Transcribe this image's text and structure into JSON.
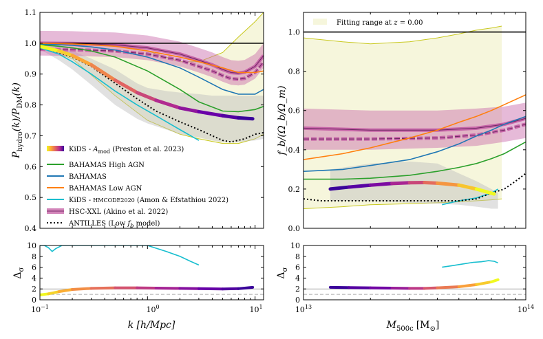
{
  "chart_data": [
    {
      "id": "left_top",
      "type": "line",
      "xscale": "log",
      "xlim": [
        0.1,
        12
      ],
      "ylim": [
        0.4,
        1.1
      ],
      "xlabel": "k [h/Mpc]",
      "ylabel": "P_hydro(k)/P_DM(k)",
      "yticks": [
        "0.4",
        "0.5",
        "0.6",
        "0.7",
        "0.8",
        "0.9",
        "1.0",
        "1.1"
      ],
      "legend": {
        "placement": "lower-left",
        "items": [
          {
            "label": "KiDS - A_mod (Preston et al. 2023)",
            "style": "gradient"
          },
          {
            "label": "BAHAMAS High AGN",
            "color": "#2ca02c"
          },
          {
            "label": "BAHAMAS",
            "color": "#1f77b4"
          },
          {
            "label": "BAHAMAS Low AGN",
            "color": "#ff7f0e"
          },
          {
            "label": "KiDS - HMCODE2020 (Amon & Efstathiou 2022)",
            "color": "#17becf"
          },
          {
            "label": "HSC-XXL (Akino et al. 2022)",
            "color": "#c765a8"
          },
          {
            "label": "ANTILLES (Low f_b model)",
            "color": "#000000",
            "dash": "dotted"
          }
        ]
      },
      "series": [
        {
          "name": "BAHAMAS High AGN",
          "color": "#2ca02c",
          "x": [
            0.1,
            0.15,
            0.2,
            0.3,
            0.5,
            1,
            2,
            3,
            5,
            7,
            10,
            12
          ],
          "y": [
            0.995,
            0.99,
            0.985,
            0.975,
            0.955,
            0.91,
            0.85,
            0.81,
            0.78,
            0.778,
            0.785,
            0.795
          ]
        },
        {
          "name": "BAHAMAS",
          "color": "#1f77b4",
          "x": [
            0.1,
            0.15,
            0.2,
            0.3,
            0.5,
            1,
            2,
            3,
            5,
            7,
            10,
            12
          ],
          "y": [
            0.998,
            0.995,
            0.993,
            0.988,
            0.978,
            0.955,
            0.92,
            0.89,
            0.85,
            0.835,
            0.835,
            0.85
          ]
        },
        {
          "name": "BAHAMAS Low AGN",
          "color": "#ff7f0e",
          "x": [
            0.1,
            0.15,
            0.2,
            0.3,
            0.5,
            1,
            2,
            3,
            5,
            7,
            10,
            12
          ],
          "y": [
            1.0,
            0.999,
            0.998,
            0.995,
            0.99,
            0.975,
            0.955,
            0.94,
            0.92,
            0.905,
            0.905,
            0.91
          ]
        },
        {
          "name": "KiDS - HMCODE2020 (Amon & Efstathiou 2022)",
          "color": "#17becf",
          "x": [
            0.1,
            0.15,
            0.2,
            0.3,
            0.5,
            0.8,
            1.2,
            2,
            3
          ],
          "y": [
            0.985,
            0.965,
            0.94,
            0.9,
            0.845,
            0.8,
            0.765,
            0.72,
            0.685
          ]
        },
        {
          "name": "ANTILLES (Low f_b model)",
          "color": "#000000",
          "dash": "dotted",
          "x": [
            0.1,
            0.15,
            0.2,
            0.3,
            0.5,
            0.8,
            1.2,
            2,
            3,
            4,
            5,
            6,
            8,
            10,
            12
          ],
          "y": [
            0.99,
            0.97,
            0.955,
            0.925,
            0.87,
            0.82,
            0.78,
            0.745,
            0.72,
            0.7,
            0.685,
            0.68,
            0.69,
            0.705,
            0.71
          ]
        }
      ],
      "kids_amod_band": {
        "x": [
          0.1,
          0.15,
          0.2,
          0.3,
          0.5,
          0.8,
          1.2,
          2,
          3,
          5,
          7,
          9.5
        ],
        "y": [
          0.99,
          0.975,
          0.96,
          0.93,
          0.88,
          0.84,
          0.815,
          0.79,
          0.778,
          0.765,
          0.758,
          0.755
        ]
      },
      "hsc_xxl": {
        "color": "#c765a8",
        "x": [
          0.1,
          0.2,
          0.5,
          1,
          2,
          3,
          4,
          5,
          6,
          7,
          8,
          10,
          12
        ],
        "center": [
          1.0,
          0.999,
          0.995,
          0.985,
          0.965,
          0.945,
          0.93,
          0.915,
          0.905,
          0.903,
          0.906,
          0.925,
          0.96
        ],
        "dashed_offset": -0.02,
        "band_halfwidth": 0.04
      },
      "grey_band": {
        "x": [
          0.1,
          0.15,
          0.2,
          0.3,
          0.5,
          0.8,
          1,
          1.5,
          2,
          3,
          4,
          5,
          7,
          10,
          12
        ],
        "upper": [
          0.995,
          0.985,
          0.975,
          0.95,
          0.915,
          0.87,
          0.855,
          0.845,
          0.84,
          0.835,
          0.83,
          0.83,
          0.83,
          0.83,
          0.83
        ],
        "lower": [
          0.98,
          0.945,
          0.915,
          0.865,
          0.8,
          0.755,
          0.74,
          0.72,
          0.705,
          0.695,
          0.685,
          0.68,
          0.68,
          0.685,
          0.69
        ]
      },
      "fitting_range": {
        "x": [
          0.1,
          0.2,
          0.5,
          1,
          2,
          3,
          5,
          7,
          10,
          12
        ],
        "upper": [
          1.0,
          1.0,
          0.995,
          0.975,
          0.94,
          0.94,
          0.97,
          1.02,
          1.07,
          1.1
        ],
        "lower": [
          0.985,
          0.95,
          0.83,
          0.75,
          0.705,
          0.69,
          0.675,
          0.675,
          0.69,
          0.705
        ]
      },
      "reference_line": 1.0
    },
    {
      "id": "right_top",
      "type": "line",
      "xscale": "log",
      "xlim": [
        10000000000000.0,
        100000000000000.0
      ],
      "ylim": [
        0.0,
        1.1
      ],
      "xlabel": "M_500c [M_sun]",
      "ylabel": "f_b/(Ω_b/Ω_m)",
      "yticks": [
        "0.0",
        "0.2",
        "0.4",
        "0.6",
        "0.8",
        "1.0"
      ],
      "legend": {
        "placement": "top-left",
        "items": [
          {
            "label": "Fitting range at z = 0.00",
            "color": "#f6f6dc"
          }
        ]
      },
      "series": [
        {
          "name": "BAHAMAS Low AGN",
          "color": "#ff7f0e",
          "x": [
            10000000000000.0,
            15000000000000.0,
            20000000000000.0,
            30000000000000.0,
            40000000000000.0,
            50000000000000.0,
            60000000000000.0,
            70000000000000.0,
            80000000000000.0,
            100000000000000.0
          ],
          "y": [
            0.35,
            0.38,
            0.41,
            0.46,
            0.5,
            0.54,
            0.57,
            0.6,
            0.63,
            0.68
          ]
        },
        {
          "name": "BAHAMAS",
          "color": "#1f77b4",
          "x": [
            10000000000000.0,
            15000000000000.0,
            20000000000000.0,
            30000000000000.0,
            40000000000000.0,
            50000000000000.0,
            60000000000000.0,
            70000000000000.0,
            80000000000000.0,
            100000000000000.0
          ],
          "y": [
            0.29,
            0.3,
            0.32,
            0.35,
            0.39,
            0.43,
            0.47,
            0.5,
            0.53,
            0.57
          ]
        },
        {
          "name": "BAHAMAS High AGN",
          "color": "#2ca02c",
          "x": [
            10000000000000.0,
            15000000000000.0,
            20000000000000.0,
            30000000000000.0,
            40000000000000.0,
            50000000000000.0,
            60000000000000.0,
            70000000000000.0,
            80000000000000.0,
            100000000000000.0
          ],
          "y": [
            0.25,
            0.25,
            0.255,
            0.27,
            0.29,
            0.31,
            0.33,
            0.355,
            0.38,
            0.44
          ]
        },
        {
          "name": "KiDS - HMCODE2020 (Amon & Efstathiou 2022)",
          "color": "#17becf",
          "x": [
            42000000000000.0,
            50000000000000.0,
            60000000000000.0,
            70000000000000.0,
            75000000000000.0
          ],
          "y": [
            0.12,
            0.14,
            0.155,
            0.18,
            0.2
          ]
        },
        {
          "name": "ANTILLES (Low f_b model)",
          "color": "#000000",
          "dash": "dotted",
          "x": [
            10000000000000.0,
            12000000000000.0,
            15000000000000.0,
            20000000000000.0,
            30000000000000.0,
            40000000000000.0,
            50000000000000.0,
            60000000000000.0,
            70000000000000.0,
            75000000000000.0,
            80000000000000.0,
            90000000000000.0,
            100000000000000.0
          ],
          "y": [
            0.15,
            0.14,
            0.14,
            0.14,
            0.14,
            0.14,
            0.14,
            0.15,
            0.18,
            0.19,
            0.2,
            0.24,
            0.28
          ]
        }
      ],
      "kids_amod_band": {
        "x": [
          13200000000000.0,
          16000000000000.0,
          20000000000000.0,
          25000000000000.0,
          30000000000000.0,
          35000000000000.0,
          40000000000000.0,
          50000000000000.0,
          60000000000000.0,
          72000000000000.0
        ],
        "y": [
          0.2,
          0.21,
          0.22,
          0.228,
          0.232,
          0.233,
          0.23,
          0.22,
          0.2,
          0.175
        ]
      },
      "hsc_xxl": {
        "color": "#c765a8",
        "x": [
          10000000000000.0,
          20000000000000.0,
          40000000000000.0,
          60000000000000.0,
          80000000000000.0,
          100000000000000.0
        ],
        "center": [
          0.51,
          0.5,
          0.5,
          0.51,
          0.53,
          0.56
        ],
        "dashed": [
          0.455,
          0.455,
          0.46,
          0.475,
          0.5,
          0.53
        ],
        "band_upper": [
          0.61,
          0.6,
          0.6,
          0.61,
          0.62,
          0.64
        ],
        "band_lower": [
          0.4,
          0.4,
          0.41,
          0.42,
          0.44,
          0.46
        ]
      },
      "grey_band": {
        "x": [
          13200000000000.0,
          20000000000000.0,
          30000000000000.0,
          40000000000000.0,
          50000000000000.0,
          60000000000000.0,
          70000000000000.0,
          75000000000000.0
        ],
        "upper": [
          0.3,
          0.33,
          0.34,
          0.33,
          0.28,
          0.24,
          0.2,
          0.18
        ],
        "lower": [
          0.14,
          0.14,
          0.13,
          0.125,
          0.12,
          0.11,
          0.1,
          0.1
        ]
      },
      "fitting_range": {
        "x": [
          10000000000000.0,
          15000000000000.0,
          20000000000000.0,
          30000000000000.0,
          40000000000000.0,
          50000000000000.0,
          60000000000000.0,
          70000000000000.0,
          78000000000000.0
        ],
        "upper": [
          0.97,
          0.95,
          0.94,
          0.95,
          0.97,
          0.99,
          1.01,
          1.02,
          1.03
        ],
        "lower": [
          0.1,
          0.11,
          0.12,
          0.125,
          0.13,
          0.135,
          0.14,
          0.145,
          0.15
        ],
        "x_end": 78000000000000.0
      },
      "reference_line": 1.0
    },
    {
      "id": "left_bottom",
      "type": "line",
      "xscale": "log",
      "xlim": [
        0.1,
        12
      ],
      "ylim": [
        0,
        10
      ],
      "xlabel": "k [h/Mpc]",
      "ylabel": "Δσ",
      "yticks": [
        "0",
        "2",
        "4",
        "6",
        "8",
        "10"
      ],
      "xticks": [
        "10^-1",
        "10^0",
        "10^1"
      ],
      "hlines": [
        {
          "y": 2,
          "color": "#aaaaaa",
          "dash": "solid"
        },
        {
          "y": 1,
          "color": "#aaaaaa",
          "dash": "dashed"
        }
      ],
      "series": [
        {
          "name": "KiDS - HMCODE2020 (Amon & Efstathiou 2022)",
          "color": "#17becf",
          "x": [
            0.1,
            0.11,
            0.12,
            0.13,
            0.14,
            0.16,
            1.0,
            1.5,
            2.0,
            2.5,
            3.0
          ],
          "y": [
            10,
            10,
            9.6,
            8.9,
            9.4,
            10,
            10,
            8.9,
            8.0,
            7.1,
            6.4
          ]
        }
      ],
      "kids_amod_delta": {
        "x": [
          0.1,
          0.12,
          0.15,
          0.2,
          0.3,
          0.5,
          0.8,
          1.2,
          2,
          3,
          5,
          7,
          9.5
        ],
        "y": [
          0.9,
          1.1,
          1.5,
          1.9,
          2.1,
          2.2,
          2.2,
          2.15,
          2.1,
          2.05,
          2.0,
          2.05,
          2.3
        ]
      }
    },
    {
      "id": "right_bottom",
      "type": "line",
      "xscale": "log",
      "xlim": [
        10000000000000.0,
        100000000000000.0
      ],
      "ylim": [
        0,
        10
      ],
      "xlabel": "M_500c [M_sun]",
      "ylabel": "Δσ",
      "yticks": [
        "0",
        "2",
        "4",
        "6",
        "8",
        "10"
      ],
      "xticks": [
        "10^13",
        "10^14"
      ],
      "hlines": [
        {
          "y": 2,
          "color": "#aaaaaa",
          "dash": "solid"
        },
        {
          "y": 1,
          "color": "#aaaaaa",
          "dash": "dashed"
        }
      ],
      "series": [
        {
          "name": "KiDS - HMCODE2020 (Amon & Efstathiou 2022)",
          "color": "#17becf",
          "x": [
            42000000000000.0,
            47000000000000.0,
            52000000000000.0,
            58000000000000.0,
            63000000000000.0,
            68000000000000.0,
            72000000000000.0,
            75000000000000.0
          ],
          "y": [
            6.0,
            6.3,
            6.6,
            6.9,
            7.0,
            7.2,
            7.1,
            6.8
          ]
        }
      ],
      "kids_amod_delta": {
        "x": [
          13200000000000.0,
          16000000000000.0,
          20000000000000.0,
          25000000000000.0,
          30000000000000.0,
          35000000000000.0,
          40000000000000.0,
          50000000000000.0,
          60000000000000.0,
          70000000000000.0,
          75000000000000.0
        ],
        "y": [
          2.3,
          2.25,
          2.2,
          2.15,
          2.1,
          2.1,
          2.2,
          2.4,
          2.8,
          3.3,
          3.7
        ]
      }
    }
  ],
  "text": {
    "l_ylabel_main": "P",
    "l_ylabel_sub1": "hydro",
    "l_ylabel_mid": "(k)/P",
    "l_ylabel_sub2": "DM",
    "l_ylabel_end": "(k)",
    "l_xlabel": "k [h/Mpc]",
    "r_ylabel": "f_b/(Ω_b/Ω_m)",
    "r_xlabel_main": "M",
    "r_xlabel_sub": "500c",
    "r_xlabel_unit": "[M",
    "r_xlabel_sun": "⊙",
    "r_xlabel_close": "]",
    "delta_label": "Δ",
    "delta_sub": "σ",
    "x_l_1": "10",
    "x_l_1_exp": "−1",
    "x_l_2": "10",
    "x_l_2_exp": "0",
    "x_l_3": "10",
    "x_l_3_exp": "1",
    "x_r_1": "10",
    "x_r_1_exp": "13",
    "x_r_2": "10",
    "x_r_2_exp": "14",
    "fitting_label_prefix": "Fitting range at ",
    "fitting_label_z": "z",
    "fitting_label_suffix": " = 0.00",
    "leg_kids_amod_a": "KiDS - ",
    "leg_kids_amod_b": "A",
    "leg_kids_amod_c": "mod",
    "leg_kids_amod_d": " (Preston et al. 2023)",
    "leg_high_agn": "BAHAMAS High AGN",
    "leg_bahamas": "BAHAMAS",
    "leg_low_agn": "BAHAMAS Low AGN",
    "leg_hmcode_a": "KiDS - ",
    "leg_hmcode_b": "HMCODE2020",
    "leg_hmcode_c": " (Amon & Efstathiou 2022)",
    "leg_hsc": "HSC-XXL (Akino et al. 2022)",
    "leg_antilles_a": "ANTILLES (Low ",
    "leg_antilles_b": "f",
    "leg_antilles_c": "b",
    "leg_antilles_d": " model)"
  }
}
